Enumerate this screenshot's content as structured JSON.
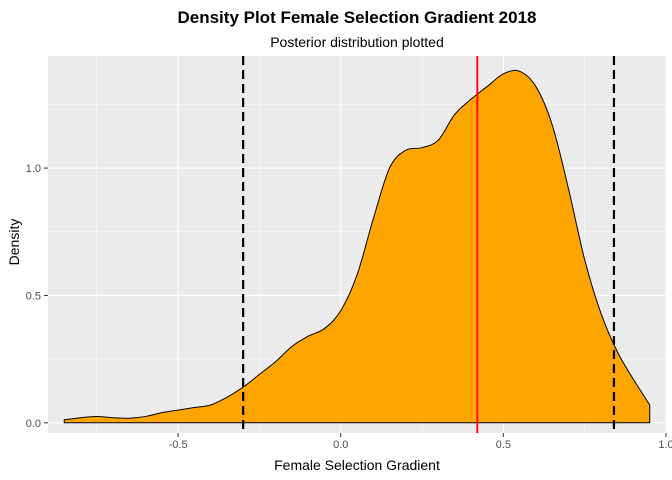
{
  "chart_data": {
    "type": "area",
    "title": "Density Plot Female Selection Gradient 2018",
    "subtitle": "Posterior distribution plotted",
    "xlabel": "Female Selection Gradient",
    "ylabel": "Density",
    "xlim": [
      -0.9,
      1.0
    ],
    "ylim": [
      -0.04,
      1.44
    ],
    "x_ticks": [
      -0.5,
      0.0,
      0.5,
      1.0
    ],
    "x_tick_labels": [
      "-0.5",
      "0.0",
      "0.5",
      "1.0"
    ],
    "y_ticks": [
      0.0,
      0.5,
      1.0
    ],
    "y_tick_labels": [
      "0.0",
      "0.5",
      "1.0"
    ],
    "grid": true,
    "fill_color": "#FFA500",
    "outline_color": "#000000",
    "panel_color": "#EBEBEB",
    "grid_color": "#FFFFFF",
    "density": {
      "x": [
        -0.85,
        -0.8,
        -0.75,
        -0.7,
        -0.65,
        -0.6,
        -0.55,
        -0.5,
        -0.45,
        -0.4,
        -0.35,
        -0.3,
        -0.25,
        -0.2,
        -0.15,
        -0.1,
        -0.05,
        0.0,
        0.05,
        0.1,
        0.15,
        0.2,
        0.25,
        0.3,
        0.35,
        0.4,
        0.45,
        0.5,
        0.55,
        0.6,
        0.65,
        0.7,
        0.75,
        0.8,
        0.85,
        0.9,
        0.95
      ],
      "y": [
        0.012,
        0.02,
        0.025,
        0.02,
        0.018,
        0.025,
        0.04,
        0.05,
        0.06,
        0.07,
        0.1,
        0.14,
        0.19,
        0.24,
        0.3,
        0.34,
        0.37,
        0.44,
        0.58,
        0.8,
        1.0,
        1.07,
        1.08,
        1.11,
        1.21,
        1.27,
        1.32,
        1.37,
        1.38,
        1.32,
        1.17,
        0.92,
        0.64,
        0.43,
        0.28,
        0.17,
        0.07
      ]
    },
    "reference_lines": [
      {
        "type": "mean",
        "x": 0.42,
        "color": "#FF0000",
        "style": "solid"
      },
      {
        "type": "lower_interval",
        "x": -0.3,
        "color": "#000000",
        "style": "dashed"
      },
      {
        "type": "upper_interval",
        "x": 0.84,
        "color": "#000000",
        "style": "dashed"
      }
    ]
  }
}
